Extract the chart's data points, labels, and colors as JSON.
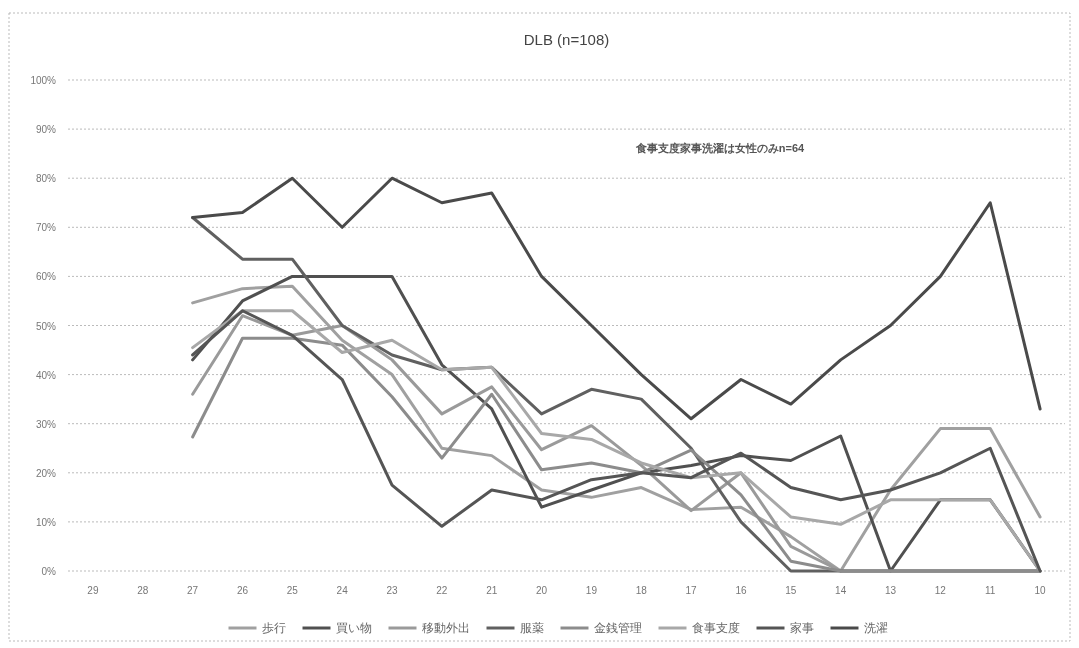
{
  "chart_data": {
    "type": "line",
    "title": "DLB (n=108)",
    "annotations": [
      "食事支度家事洗濯は女性のみn=64"
    ],
    "categories": [
      "29",
      "28",
      "27",
      "26",
      "25",
      "24",
      "23",
      "22",
      "21",
      "20",
      "19",
      "18",
      "17",
      "16",
      "15",
      "14",
      "13",
      "12",
      "11",
      "10"
    ],
    "ylim": [
      0,
      100
    ],
    "yticks": [
      {
        "value": 0,
        "label": "0%"
      },
      {
        "value": 10,
        "label": "10%"
      },
      {
        "value": 20,
        "label": "20%"
      },
      {
        "value": 30,
        "label": "30%"
      },
      {
        "value": 40,
        "label": "40%"
      },
      {
        "value": 50,
        "label": "50%"
      },
      {
        "value": 60,
        "label": "60%"
      },
      {
        "value": 70,
        "label": "70%"
      },
      {
        "value": 80,
        "label": "80%"
      },
      {
        "value": 90,
        "label": "90%"
      },
      {
        "value": 100,
        "label": "100%"
      }
    ],
    "grid": "y",
    "legend": "bottom",
    "marker": "none",
    "line_style": "solid",
    "series": [
      {
        "name": "歩行",
        "color": "#a0a0a0",
        "values": [
          null,
          null,
          54.6,
          57.5,
          58,
          47,
          40,
          25,
          23.5,
          16.5,
          15,
          17,
          12.5,
          13,
          7,
          0,
          16.5,
          29,
          29,
          11
        ]
      },
      {
        "name": "買い物",
        "color": "#505050",
        "values": [
          null,
          null,
          43,
          55,
          60,
          60,
          60,
          42,
          33,
          13,
          16.5,
          20,
          21.5,
          23.5,
          22.5,
          27.5,
          0,
          14.5,
          14.5,
          0
        ]
      },
      {
        "name": "移動外出",
        "color": "#9a9a9a",
        "values": [
          null,
          null,
          36,
          52,
          48,
          50,
          43,
          32,
          37.5,
          24.7,
          29.6,
          21.5,
          12.3,
          20,
          5,
          0,
          0,
          0,
          0,
          0
        ]
      },
      {
        "name": "服薬",
        "color": "#606060",
        "values": [
          null,
          null,
          72,
          63.5,
          63.5,
          50,
          44,
          41,
          41.5,
          32,
          37,
          35,
          25,
          10,
          0,
          0,
          0,
          0,
          0,
          0
        ]
      },
      {
        "name": "金銭管理",
        "color": "#8c8c8c",
        "values": [
          null,
          null,
          27.3,
          47.4,
          47.4,
          46,
          35.5,
          23,
          36,
          20.6,
          22,
          20,
          24.6,
          15.5,
          2,
          0,
          0,
          0,
          0,
          0
        ]
      },
      {
        "name": "食事支度",
        "color": "#a8a8a8",
        "values": [
          null,
          null,
          45.5,
          53,
          53,
          44.5,
          47,
          41,
          41.5,
          28,
          26.8,
          22,
          19,
          20,
          11,
          9.5,
          14.5,
          14.5,
          14.5,
          0
        ]
      },
      {
        "name": "家事",
        "color": "#555555",
        "values": [
          null,
          null,
          44,
          53,
          48,
          39,
          17.5,
          9.1,
          16.5,
          14.5,
          18.6,
          20,
          19,
          24,
          17,
          14.5,
          16.5,
          20,
          25,
          0
        ]
      },
      {
        "name": "洗濯",
        "color": "#4a4a4a",
        "values": [
          null,
          null,
          72,
          73,
          80,
          70,
          80,
          75,
          77,
          60,
          50,
          40,
          31,
          39,
          34,
          43,
          50,
          60,
          75,
          33
        ]
      }
    ]
  }
}
